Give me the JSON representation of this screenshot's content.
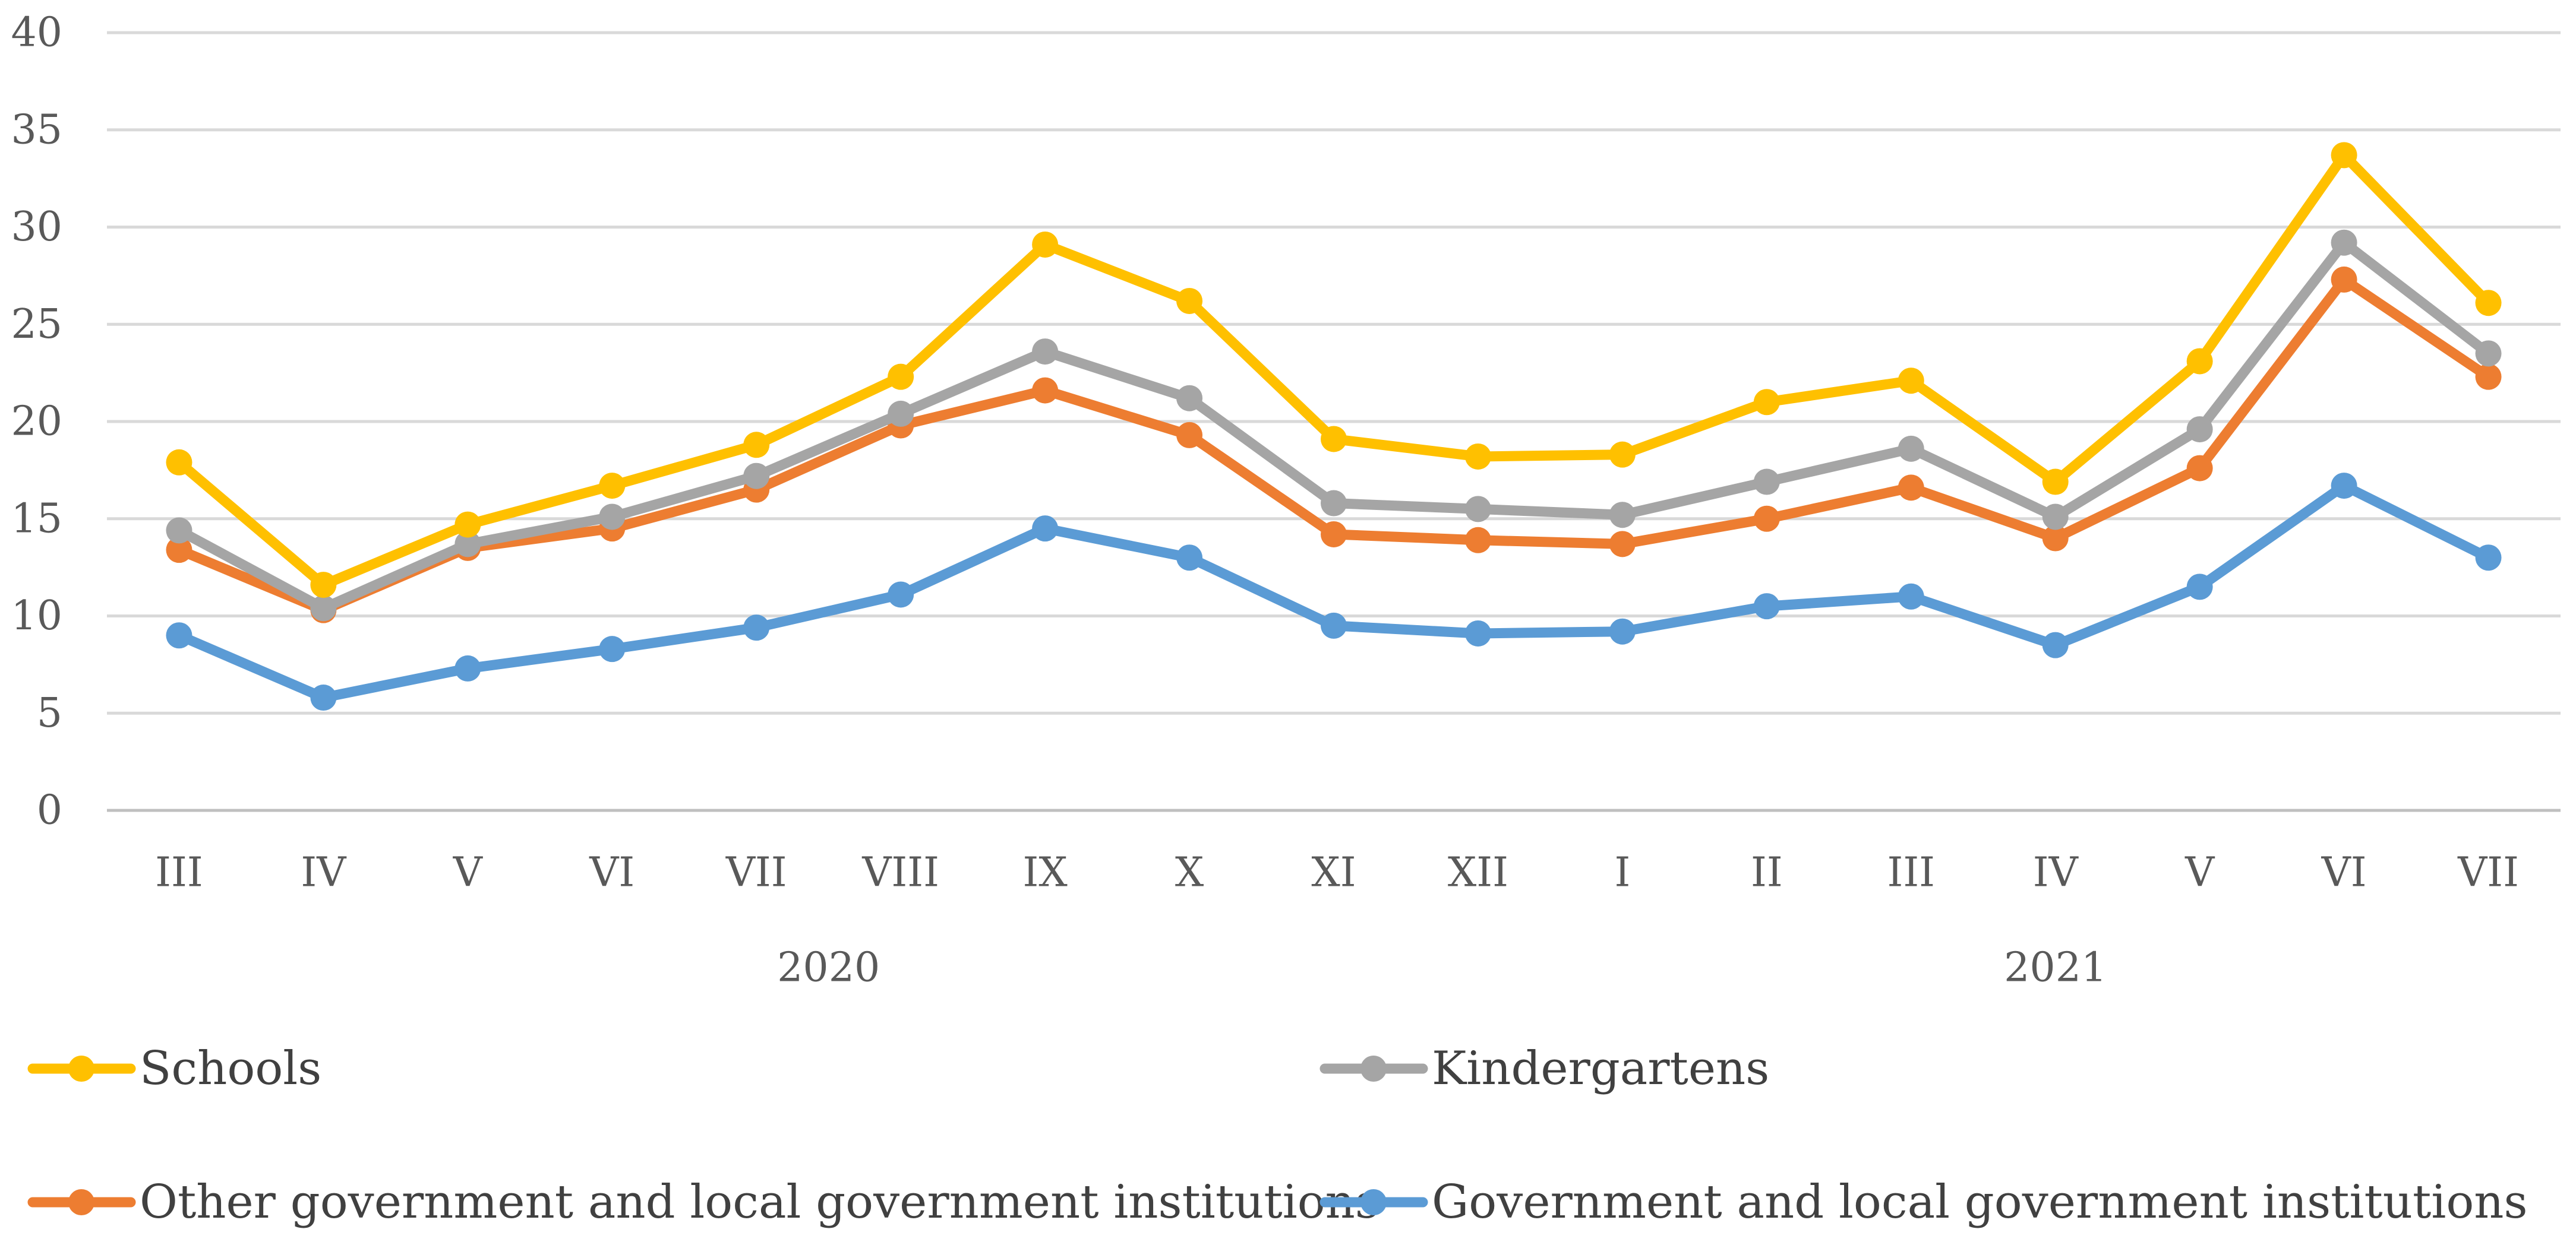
{
  "chart_data": {
    "type": "line",
    "title": "",
    "xlabel": "",
    "ylabel": "",
    "ylim": [
      0,
      40
    ],
    "yticks": [
      0,
      5,
      10,
      15,
      20,
      25,
      30,
      35,
      40
    ],
    "grid": true,
    "legend_position": "bottom",
    "categories": [
      "III",
      "IV",
      "V",
      "VI",
      "VII",
      "VIII",
      "IX",
      "X",
      "XI",
      "XII",
      "I",
      "II",
      "III",
      "IV",
      "V",
      "VI",
      "VII"
    ],
    "year_groups": [
      {
        "label": "2020",
        "start": 0,
        "end": 9
      },
      {
        "label": "2021",
        "start": 10,
        "end": 16
      }
    ],
    "series": [
      {
        "name": "Schools",
        "color": "#FFC000",
        "values": [
          17.9,
          11.6,
          14.7,
          16.7,
          18.8,
          22.3,
          29.1,
          26.2,
          19.1,
          18.2,
          18.3,
          21.0,
          22.1,
          16.9,
          23.1,
          33.7,
          26.1
        ]
      },
      {
        "name": "Kindergartens",
        "color": "#A5A5A5",
        "values": [
          14.4,
          10.4,
          13.7,
          15.1,
          17.2,
          20.4,
          23.6,
          21.2,
          15.8,
          15.5,
          15.2,
          16.9,
          18.6,
          15.1,
          19.6,
          29.2,
          23.5
        ]
      },
      {
        "name": "Other government and local government institutions",
        "color": "#ED7D31",
        "values": [
          13.4,
          10.3,
          13.5,
          14.5,
          16.5,
          19.8,
          21.6,
          19.3,
          14.2,
          13.9,
          13.7,
          15.0,
          16.6,
          14.0,
          17.6,
          27.3,
          22.3
        ]
      },
      {
        "name": "Government and local government institutions",
        "color": "#5B9BD5",
        "values": [
          9.0,
          5.8,
          7.3,
          8.3,
          9.4,
          11.1,
          14.5,
          13.0,
          9.5,
          9.1,
          9.2,
          10.5,
          11.0,
          8.5,
          11.5,
          16.7,
          13.0
        ]
      }
    ]
  }
}
